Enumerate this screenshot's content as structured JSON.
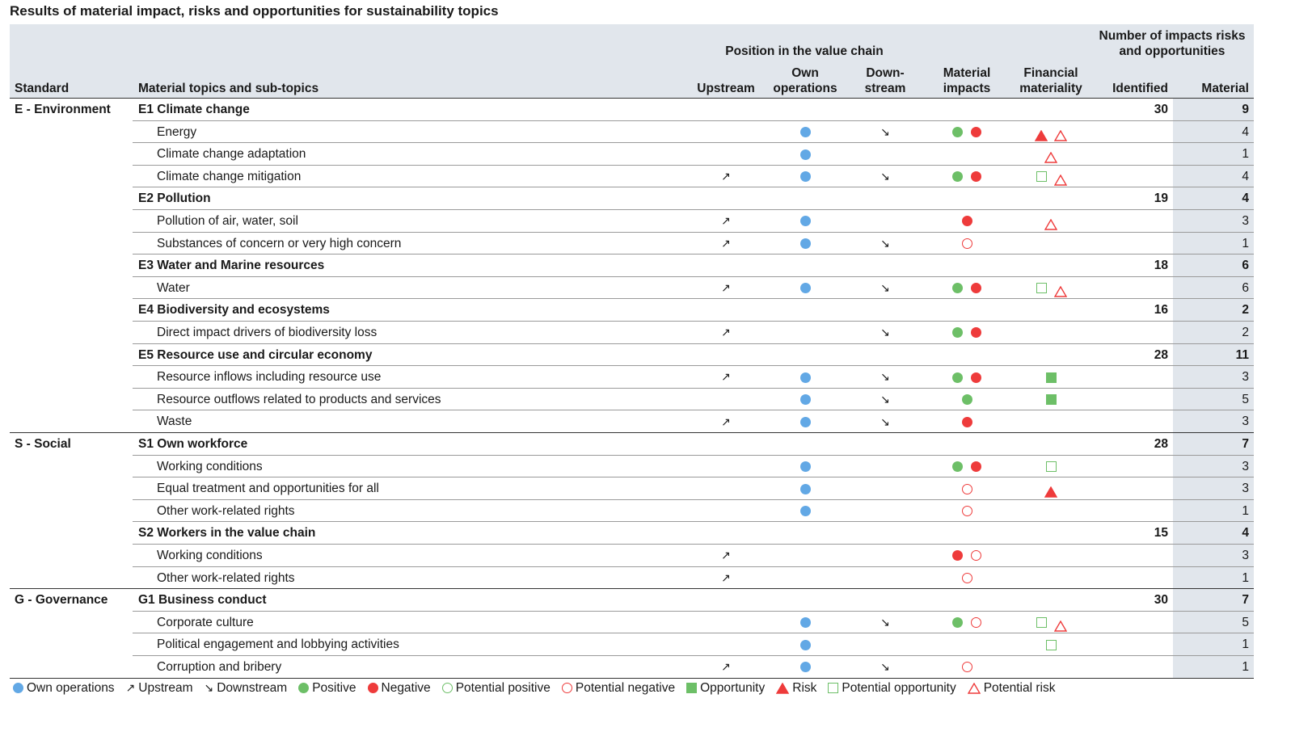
{
  "title": "Results of material impact, risks and opportunities for sustainability topics",
  "headers": {
    "standard": "Standard",
    "topics": "Material topics and sub-topics",
    "position_group": "Position in the value chain",
    "upstream": "Upstream",
    "own_line1": "Own",
    "own_line2": "operations",
    "down_line1": "Down-",
    "down_line2": "stream",
    "impacts_line1": "Material",
    "impacts_line2": "impacts",
    "fin_line1": "Financial",
    "fin_line2": "materiality",
    "number_line1": "Number of impacts risks",
    "number_line2": "and opportunities",
    "identified": "Identified",
    "material": "Material"
  },
  "colors": {
    "own_operations": "#62a8e5",
    "positive": "#6dbf67",
    "negative": "#ee3b3b",
    "header_bg": "#e1e6ec"
  },
  "symbols": {
    "upstream": "↗",
    "downstream": "↘"
  },
  "rows": [
    {
      "standard": "E - Environment",
      "label": "E1 Climate change",
      "topic": true,
      "identified": "30",
      "material": "9",
      "up": false,
      "own": false,
      "down": false,
      "impacts": [],
      "fin": []
    },
    {
      "standard": "",
      "label": "Energy",
      "topic": false,
      "identified": "",
      "material": "4",
      "up": false,
      "own": true,
      "down": true,
      "impacts": [
        "positive",
        "negative"
      ],
      "fin": [
        "risk",
        "potential-risk"
      ]
    },
    {
      "standard": "",
      "label": "Climate change adaptation",
      "topic": false,
      "identified": "",
      "material": "1",
      "up": false,
      "own": true,
      "down": false,
      "impacts": [],
      "fin": [
        "potential-risk"
      ]
    },
    {
      "standard": "",
      "label": "Climate change mitigation",
      "topic": false,
      "identified": "",
      "material": "4",
      "up": true,
      "own": true,
      "down": true,
      "impacts": [
        "positive",
        "negative"
      ],
      "fin": [
        "potential-opportunity",
        "potential-risk"
      ]
    },
    {
      "standard": "",
      "label": "E2 Pollution",
      "topic": true,
      "identified": "19",
      "material": "4",
      "up": false,
      "own": false,
      "down": false,
      "impacts": [],
      "fin": []
    },
    {
      "standard": "",
      "label": "Pollution of air, water, soil",
      "topic": false,
      "identified": "",
      "material": "3",
      "up": true,
      "own": true,
      "down": false,
      "impacts": [
        "negative"
      ],
      "fin": [
        "potential-risk"
      ]
    },
    {
      "standard": "",
      "label": "Substances of concern or very high concern",
      "topic": false,
      "identified": "",
      "material": "1",
      "up": true,
      "own": true,
      "down": true,
      "impacts": [
        "potential-negative"
      ],
      "fin": []
    },
    {
      "standard": "",
      "label": "E3 Water and Marine resources",
      "topic": true,
      "identified": "18",
      "material": "6",
      "up": false,
      "own": false,
      "down": false,
      "impacts": [],
      "fin": []
    },
    {
      "standard": "",
      "label": "Water",
      "topic": false,
      "identified": "",
      "material": "6",
      "up": true,
      "own": true,
      "down": true,
      "impacts": [
        "positive",
        "negative"
      ],
      "fin": [
        "potential-opportunity",
        "potential-risk"
      ]
    },
    {
      "standard": "",
      "label": "E4 Biodiversity and ecosystems",
      "topic": true,
      "identified": "16",
      "material": "2",
      "up": false,
      "own": false,
      "down": false,
      "impacts": [],
      "fin": []
    },
    {
      "standard": "",
      "label": "Direct impact drivers of biodiversity loss",
      "topic": false,
      "identified": "",
      "material": "2",
      "up": true,
      "own": false,
      "down": true,
      "impacts": [
        "positive",
        "negative"
      ],
      "fin": []
    },
    {
      "standard": "",
      "label": "E5 Resource use and circular economy",
      "topic": true,
      "identified": "28",
      "material": "11",
      "up": false,
      "own": false,
      "down": false,
      "impacts": [],
      "fin": []
    },
    {
      "standard": "",
      "label": "Resource inflows including resource use",
      "topic": false,
      "identified": "",
      "material": "3",
      "up": true,
      "own": true,
      "down": true,
      "impacts": [
        "positive",
        "negative"
      ],
      "fin": [
        "opportunity"
      ]
    },
    {
      "standard": "",
      "label": "Resource outflows related to products and services",
      "topic": false,
      "identified": "",
      "material": "5",
      "up": false,
      "own": true,
      "down": true,
      "impacts": [
        "positive"
      ],
      "fin": [
        "opportunity"
      ]
    },
    {
      "standard": "",
      "label": "Waste",
      "topic": false,
      "identified": "",
      "material": "3",
      "up": true,
      "own": true,
      "down": true,
      "impacts": [
        "negative"
      ],
      "fin": []
    },
    {
      "standard": "S - Social",
      "label": "S1 Own workforce",
      "topic": true,
      "identified": "28",
      "material": "7",
      "up": false,
      "own": false,
      "down": false,
      "impacts": [],
      "fin": []
    },
    {
      "standard": "",
      "label": "Working conditions",
      "topic": false,
      "identified": "",
      "material": "3",
      "up": false,
      "own": true,
      "down": false,
      "impacts": [
        "positive",
        "negative"
      ],
      "fin": [
        "potential-opportunity"
      ]
    },
    {
      "standard": "",
      "label": "Equal treatment and opportunities for all",
      "topic": false,
      "identified": "",
      "material": "3",
      "up": false,
      "own": true,
      "down": false,
      "impacts": [
        "potential-negative"
      ],
      "fin": [
        "risk"
      ]
    },
    {
      "standard": "",
      "label": "Other work-related rights",
      "topic": false,
      "identified": "",
      "material": "1",
      "up": false,
      "own": true,
      "down": false,
      "impacts": [
        "potential-negative"
      ],
      "fin": []
    },
    {
      "standard": "",
      "label": "S2 Workers in the value chain",
      "topic": true,
      "identified": "15",
      "material": "4",
      "up": false,
      "own": false,
      "down": false,
      "impacts": [],
      "fin": []
    },
    {
      "standard": "",
      "label": "Working conditions",
      "topic": false,
      "identified": "",
      "material": "3",
      "up": true,
      "own": false,
      "down": false,
      "impacts": [
        "negative",
        "potential-negative"
      ],
      "fin": []
    },
    {
      "standard": "",
      "label": "Other work-related rights",
      "topic": false,
      "identified": "",
      "material": "1",
      "up": true,
      "own": false,
      "down": false,
      "impacts": [
        "potential-negative"
      ],
      "fin": []
    },
    {
      "standard": "G - Governance",
      "label": "G1 Business conduct",
      "topic": true,
      "identified": "30",
      "material": "7",
      "up": false,
      "own": false,
      "down": false,
      "impacts": [],
      "fin": []
    },
    {
      "standard": "",
      "label": "Corporate culture",
      "topic": false,
      "identified": "",
      "material": "5",
      "up": false,
      "own": true,
      "down": true,
      "impacts": [
        "positive",
        "potential-negative"
      ],
      "fin": [
        "potential-opportunity",
        "potential-risk"
      ]
    },
    {
      "standard": "",
      "label": "Political engagement and lobbying activities",
      "topic": false,
      "identified": "",
      "material": "1",
      "up": false,
      "own": true,
      "down": false,
      "impacts": [],
      "fin": [
        "potential-opportunity"
      ]
    },
    {
      "standard": "",
      "label": "Corruption and bribery",
      "topic": false,
      "identified": "",
      "material": "1",
      "up": true,
      "own": true,
      "down": true,
      "impacts": [
        "potential-negative"
      ],
      "fin": []
    }
  ],
  "legend": [
    {
      "symbol": "own",
      "label": "Own operations"
    },
    {
      "symbol": "up",
      "label": "Upstream"
    },
    {
      "symbol": "down",
      "label": "Downstream"
    },
    {
      "symbol": "positive",
      "label": "Positive"
    },
    {
      "symbol": "negative",
      "label": "Negative"
    },
    {
      "symbol": "potential-positive",
      "label": "Potential positive"
    },
    {
      "symbol": "potential-negative",
      "label": "Potential negative"
    },
    {
      "symbol": "opportunity",
      "label": "Opportunity"
    },
    {
      "symbol": "risk",
      "label": "Risk"
    },
    {
      "symbol": "potential-opportunity",
      "label": "Potential opportunity"
    },
    {
      "symbol": "potential-risk",
      "label": "Potential risk"
    }
  ]
}
